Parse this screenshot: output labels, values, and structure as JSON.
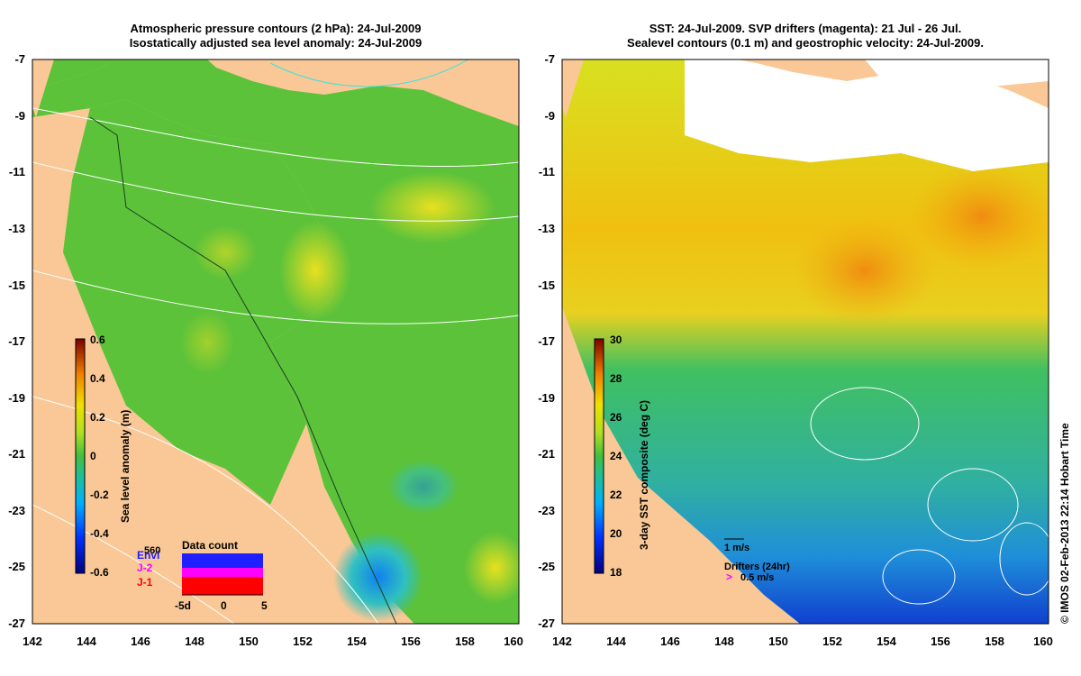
{
  "left_panel": {
    "title_line1": "Atmospheric pressure contours (2 hPa): 24-Jul-2009",
    "title_line2": "Isostatically adjusted sea level anomaly: 24-Jul-2009",
    "colorbar_label": "Sea level anomaly (m)",
    "colorbar_ticks": [
      "0.6",
      "0.4",
      "0.2",
      "0",
      "-0.2",
      "-0.4",
      "-0.6"
    ],
    "data_count": {
      "title": "Data count",
      "max_label": "560",
      "satellites": [
        "Envi",
        "J-2",
        "J-1"
      ],
      "x_ticks": [
        "-5d",
        "0",
        "5"
      ],
      "satellite_colors": [
        "#1f1fff",
        "#ff00ff",
        "#ff0000"
      ]
    }
  },
  "right_panel": {
    "title_line1": "SST: 24-Jul-2009. SVP drifters (magenta): 21 Jul - 26 Jul.",
    "title_line2": "Sealevel contours (0.1 m) and geostrophic velocity: 24-Jul-2009.",
    "colorbar_label": "3-day SST composite (deg C)",
    "colorbar_ticks": [
      "30",
      "28",
      "26",
      "24",
      "22",
      "20",
      "18"
    ],
    "velocity_scale_label": "1 m/s",
    "drifters_label": "Drifters (24hr)",
    "drifters_speed_label": "0.5 m/s"
  },
  "axes": {
    "y_ticks": [
      "-7",
      "-9",
      "-11",
      "-13",
      "-15",
      "-17",
      "-19",
      "-21",
      "-23",
      "-25",
      "-27"
    ],
    "x_ticks": [
      "142",
      "144",
      "146",
      "148",
      "150",
      "152",
      "154",
      "156",
      "158",
      "160"
    ]
  },
  "copyright": "© IMOS 02-Feb-2013 22:14 Hobart Time",
  "colors": {
    "land": "#f9c896",
    "sla_base": "#5cc23a",
    "sst_warm": "#f0c010",
    "sst_cool": "#1f8fd8"
  }
}
